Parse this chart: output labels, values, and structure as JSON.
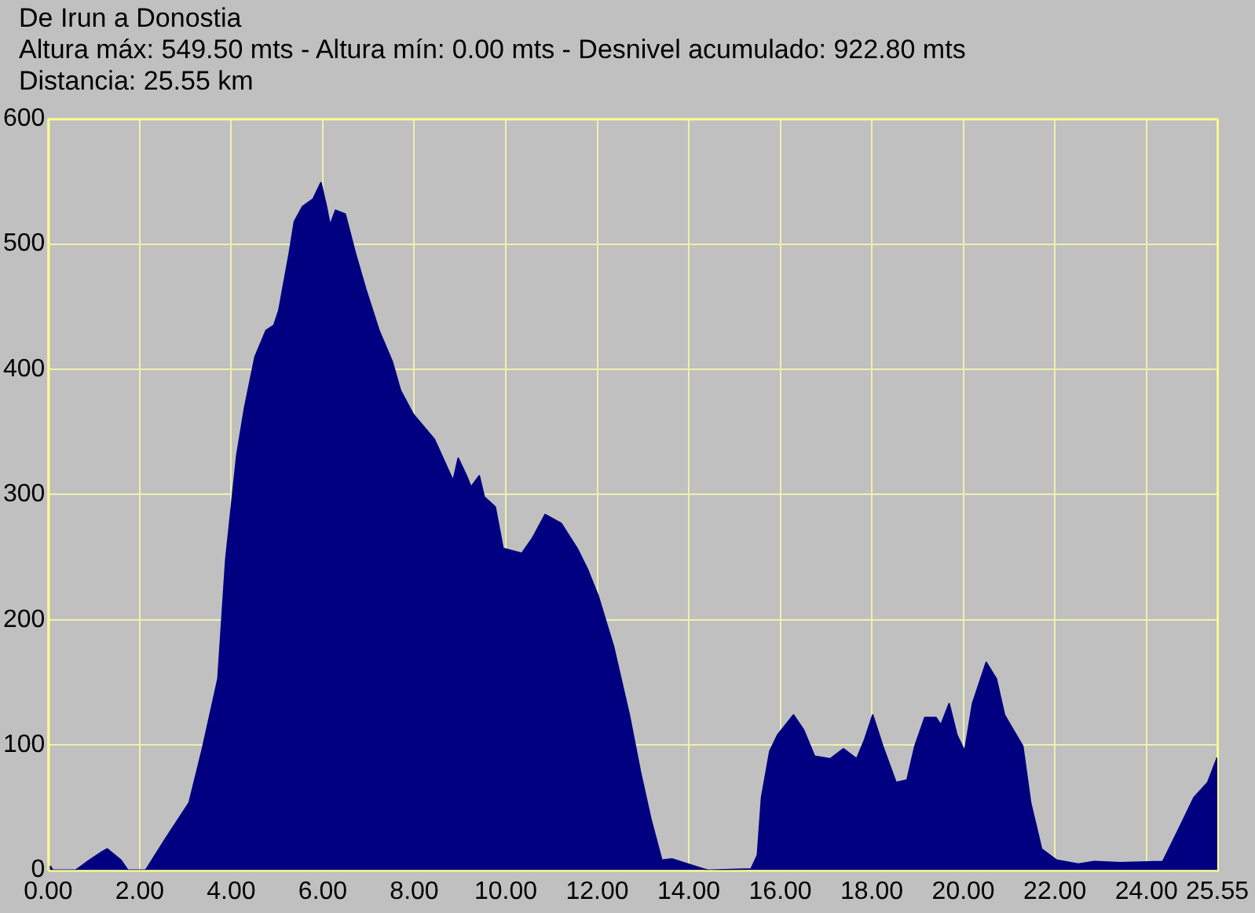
{
  "chart_data": {
    "type": "area",
    "title": "De Irun a Donostia",
    "subtitle": "Altura máx: 549.50 mts - Altura mín: 0.00 mts - Desnivel acumulado: 922.80 mts",
    "annotations": [
      "Distancia: 25.55 km"
    ],
    "x": [
      0,
      0.05,
      0.1,
      0.6,
      0.9,
      1.19,
      1.29,
      1.59,
      1.74,
      2.13,
      2.56,
      3.08,
      3.37,
      3.71,
      3.88,
      4.12,
      4.29,
      4.52,
      4.76,
      4.93,
      5.04,
      5.27,
      5.38,
      5.56,
      5.79,
      5.96,
      6.08,
      6.16,
      6.28,
      6.49,
      6.71,
      6.94,
      7.23,
      7.52,
      7.7,
      7.98,
      8.44,
      8.85,
      8.96,
      9.14,
      9.24,
      9.42,
      9.53,
      9.77,
      9.94,
      10.35,
      10.58,
      10.86,
      11.21,
      11.56,
      11.79,
      12.02,
      12.36,
      12.7,
      12.94,
      13.17,
      13.41,
      13.63,
      13.98,
      14.32,
      14.44,
      15.36,
      15.5,
      15.59,
      15.77,
      15.94,
      16.29,
      16.51,
      16.75,
      17.09,
      17.38,
      17.67,
      17.84,
      18.02,
      18.24,
      18.53,
      18.77,
      18.94,
      19.16,
      19.4,
      19.51,
      19.69,
      19.86,
      20.03,
      20.2,
      20.5,
      20.72,
      20.9,
      21.3,
      21.47,
      21.71,
      22.04,
      22.51,
      22.86,
      23.43,
      24.36,
      24.71,
      25.04,
      25.34,
      25.55
    ],
    "values": [
      3,
      3,
      0,
      0,
      8,
      15,
      17,
      8,
      0,
      0,
      25,
      54,
      97,
      153,
      248,
      331,
      369,
      410,
      431,
      435,
      447,
      493,
      518,
      530,
      536,
      549,
      530,
      515,
      527,
      524,
      493,
      464,
      431,
      406,
      383,
      364,
      344,
      311,
      329,
      315,
      306,
      315,
      298,
      290,
      257,
      253,
      265,
      284,
      277,
      257,
      240,
      219,
      178,
      124,
      79,
      41,
      8,
      9,
      5,
      1,
      0,
      1,
      12,
      58,
      95,
      108,
      124,
      112,
      91,
      89,
      97,
      89,
      104,
      124,
      99,
      70,
      72,
      99,
      122,
      122,
      116,
      133,
      108,
      95,
      133,
      166,
      153,
      124,
      99,
      54,
      17,
      8,
      5,
      7,
      6,
      7,
      33,
      58,
      70,
      90
    ],
    "color": "#000080",
    "xlim": [
      0,
      25.55
    ],
    "xticks": [
      {
        "value": 0,
        "label": "0.00"
      },
      {
        "value": 2,
        "label": "2.00"
      },
      {
        "value": 4,
        "label": "4.00"
      },
      {
        "value": 6,
        "label": "6.00"
      },
      {
        "value": 8,
        "label": "8.00"
      },
      {
        "value": 10,
        "label": "10.00"
      },
      {
        "value": 12,
        "label": "12.00"
      },
      {
        "value": 14,
        "label": "14.00"
      },
      {
        "value": 16,
        "label": "16.00"
      },
      {
        "value": 18,
        "label": "18.00"
      },
      {
        "value": 20,
        "label": "20.00"
      },
      {
        "value": 22,
        "label": "22.00"
      },
      {
        "value": 24,
        "label": "24.00"
      },
      {
        "value": 25.55,
        "label": "25.55"
      }
    ],
    "ylim": [
      0,
      600
    ],
    "yticks": [
      0,
      100,
      200,
      300,
      400,
      500,
      600
    ],
    "grid": true
  }
}
